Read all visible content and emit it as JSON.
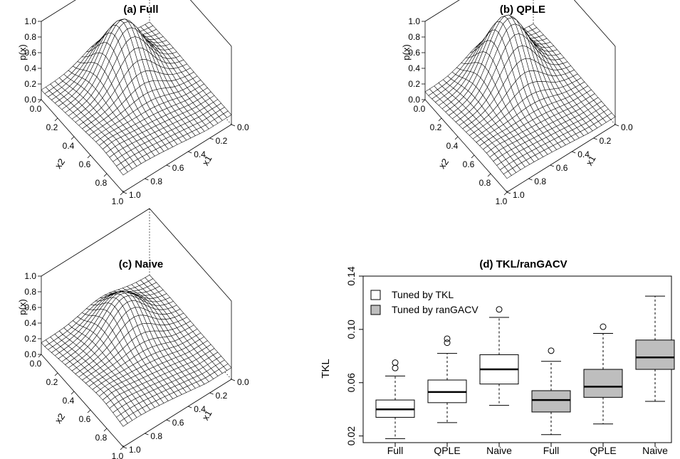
{
  "panels": [
    {
      "id": "a",
      "title": "(a) Full",
      "type": "surface",
      "zlabel": "p(x)",
      "xlabel": "x1",
      "ylabel": "x2",
      "z_ticks": [
        "0.0",
        "0.2",
        "0.4",
        "0.6",
        "0.8",
        "1.0"
      ],
      "x1_ticks": [
        "0.0",
        "0.2",
        "0.4",
        "0.6",
        "0.8",
        "1.0"
      ],
      "x2_ticks": [
        "0.0",
        "0.2",
        "0.4",
        "0.6",
        "0.8",
        "1.0"
      ],
      "peak": 0.97,
      "floor": 0.25
    },
    {
      "id": "b",
      "title": "(b) QPLE",
      "type": "surface",
      "zlabel": "p(x)",
      "xlabel": "x1",
      "ylabel": "x2",
      "z_ticks": [
        "0.0",
        "0.2",
        "0.4",
        "0.6",
        "0.8",
        "1.0"
      ],
      "x1_ticks": [
        "0.0",
        "0.2",
        "0.4",
        "0.6",
        "0.8",
        "1.0"
      ],
      "x2_ticks": [
        "0.0",
        "0.2",
        "0.4",
        "0.6",
        "0.8",
        "1.0"
      ],
      "peak": 1.0,
      "floor": 0.2
    },
    {
      "id": "c",
      "title": "(c) Naive",
      "type": "surface",
      "zlabel": "p(x)",
      "xlabel": "x1",
      "ylabel": "x2",
      "z_ticks": [
        "0.0",
        "0.2",
        "0.4",
        "0.6",
        "0.8",
        "1.0"
      ],
      "x1_ticks": [
        "0.0",
        "0.2",
        "0.4",
        "0.6",
        "0.8",
        "1.0"
      ],
      "x2_ticks": [
        "0.0",
        "0.2",
        "0.4",
        "0.6",
        "0.8",
        "1.0"
      ],
      "peak": 0.74,
      "floor": 0.3
    }
  ],
  "chart_data": {
    "type": "boxplot",
    "title": "(d) TKL/ranGACV",
    "ylabel": "TKL",
    "xlabel": "",
    "ylim": [
      0.015,
      0.14
    ],
    "yticks": [
      "0.02",
      "0.06",
      "0.10",
      "0.14"
    ],
    "categories": [
      "Full",
      "QPLE",
      "Naive",
      "Full",
      "QPLE",
      "Naive"
    ],
    "legend": [
      {
        "label": "Tuned by TKL",
        "fill": "#ffffff"
      },
      {
        "label": "Tuned by ranGACV",
        "fill": "#bebebe"
      }
    ],
    "legend_position": "top-left",
    "boxes": [
      {
        "label": "Full",
        "group": 0,
        "whisker_low": 0.018,
        "q1": 0.034,
        "median": 0.04,
        "q3": 0.047,
        "whisker_high": 0.065,
        "outliers": [
          0.071,
          0.075
        ]
      },
      {
        "label": "QPLE",
        "group": 0,
        "whisker_low": 0.03,
        "q1": 0.045,
        "median": 0.053,
        "q3": 0.062,
        "whisker_high": 0.082,
        "outliers": [
          0.09,
          0.093
        ]
      },
      {
        "label": "Naive",
        "group": 0,
        "whisker_low": 0.043,
        "q1": 0.059,
        "median": 0.07,
        "q3": 0.081,
        "whisker_high": 0.109,
        "outliers": [
          0.115
        ]
      },
      {
        "label": "Full",
        "group": 1,
        "whisker_low": 0.021,
        "q1": 0.038,
        "median": 0.047,
        "q3": 0.054,
        "whisker_high": 0.076,
        "outliers": [
          0.084
        ]
      },
      {
        "label": "QPLE",
        "group": 1,
        "whisker_low": 0.029,
        "q1": 0.049,
        "median": 0.057,
        "q3": 0.07,
        "whisker_high": 0.097,
        "outliers": [
          0.102
        ]
      },
      {
        "label": "Naive",
        "group": 1,
        "whisker_low": 0.046,
        "q1": 0.07,
        "median": 0.079,
        "q3": 0.092,
        "whisker_high": 0.125,
        "outliers": []
      }
    ]
  }
}
